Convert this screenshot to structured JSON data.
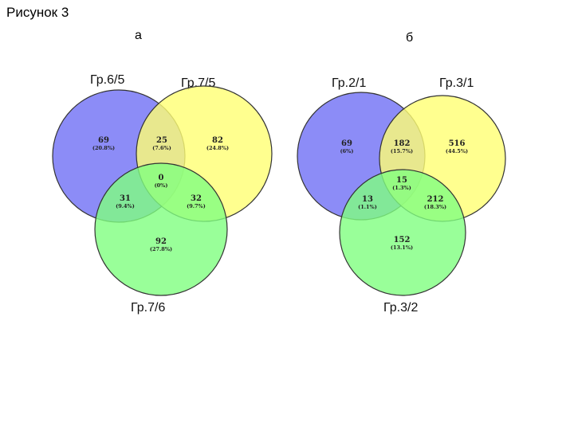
{
  "figure_title": "Рисунок 3",
  "colors": {
    "set1": "#6f6ff5",
    "set2": "#ffff73",
    "set3": "#80ff80",
    "outline": "#333333"
  },
  "panels": [
    {
      "label": "а",
      "sets": [
        "Гр.6/5",
        "Гр.7/5",
        "Гр.7/6"
      ],
      "regions": {
        "only1": {
          "count": "69",
          "pct": "(20.8%)"
        },
        "only2": {
          "count": "82",
          "pct": "(24.8%)"
        },
        "only3": {
          "count": "92",
          "pct": "(27.8%)"
        },
        "r12": {
          "count": "25",
          "pct": "(7.6%)"
        },
        "r13": {
          "count": "31",
          "pct": "(9.4%)"
        },
        "r23": {
          "count": "32",
          "pct": "(9.7%)"
        },
        "r123": {
          "count": "0",
          "pct": "(0%)"
        }
      }
    },
    {
      "label": "б",
      "sets": [
        "Гр.2/1",
        "Гр.3/1",
        "Гр.3/2"
      ],
      "regions": {
        "only1": {
          "count": "69",
          "pct": "(6%)"
        },
        "only2": {
          "count": "516",
          "pct": "(44.5%)"
        },
        "only3": {
          "count": "152",
          "pct": "(13.1%)"
        },
        "r12": {
          "count": "182",
          "pct": "(15.7%)"
        },
        "r13": {
          "count": "13",
          "pct": "(1.1%)"
        },
        "r23": {
          "count": "212",
          "pct": "(18.3%)"
        },
        "r123": {
          "count": "15",
          "pct": "(1.3%)"
        }
      }
    }
  ]
}
